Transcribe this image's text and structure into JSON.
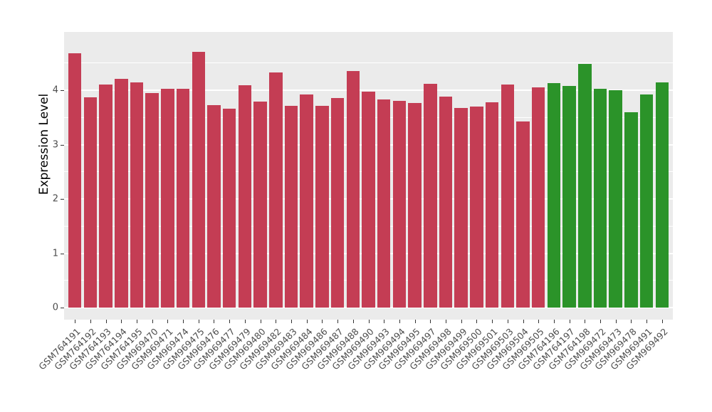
{
  "chart_data": {
    "type": "bar",
    "title": "",
    "xlabel": "",
    "ylabel": "Expression Level",
    "ylim": [
      0,
      5.1
    ],
    "yticks": [
      0,
      1,
      2,
      3,
      4
    ],
    "minor_gridlines": [
      0.5,
      1.5,
      2.5,
      3.5,
      4.5
    ],
    "grid": true,
    "legend": "none",
    "panel_background": "#EBEBEB",
    "gridline_color": "#FFFFFF",
    "categories": [
      "GSM764191",
      "GSM764192",
      "GSM764193",
      "GSM764194",
      "GSM764195",
      "GSM969470",
      "GSM969471",
      "GSM969474",
      "GSM969475",
      "GSM969476",
      "GSM969477",
      "GSM969479",
      "GSM969480",
      "GSM969482",
      "GSM969483",
      "GSM969484",
      "GSM969486",
      "GSM969487",
      "GSM969488",
      "GSM969490",
      "GSM969493",
      "GSM969494",
      "GSM969495",
      "GSM969497",
      "GSM969498",
      "GSM969499",
      "GSM969500",
      "GSM969501",
      "GSM969503",
      "GSM969504",
      "GSM969505",
      "GSM764196",
      "GSM764197",
      "GSM764198",
      "GSM969472",
      "GSM969473",
      "GSM969478",
      "GSM969491",
      "GSM969492"
    ],
    "values": [
      4.68,
      3.87,
      4.1,
      4.21,
      4.15,
      3.95,
      4.02,
      4.03,
      4.71,
      3.73,
      3.66,
      4.09,
      3.79,
      4.33,
      3.71,
      3.92,
      3.71,
      3.86,
      4.35,
      3.98,
      3.83,
      3.8,
      3.76,
      4.12,
      3.88,
      3.67,
      3.7,
      3.78,
      4.1,
      3.43,
      4.05,
      4.13,
      4.08,
      4.48,
      4.02,
      4.0,
      3.59,
      3.92,
      4.14
    ],
    "groups": {
      "group1": {
        "color": "#C43D54",
        "count": 31
      },
      "group2": {
        "color": "#2B9329",
        "count": 8
      }
    }
  }
}
